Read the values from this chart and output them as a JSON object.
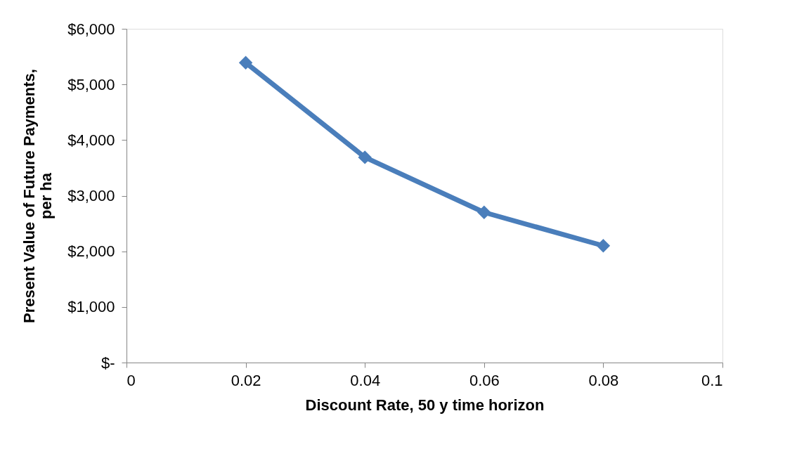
{
  "chart_data": {
    "type": "line",
    "xlabel": "Discount Rate, 50 y time horizon",
    "ylabel": "Present Value of Future Payments, per ha",
    "x": [
      0.02,
      0.04,
      0.06,
      0.08
    ],
    "series": [
      {
        "color": "#4a7ebb",
        "values": [
          5390,
          3690,
          2700,
          2100
        ]
      }
    ],
    "xlim": [
      0,
      0.1
    ],
    "xticks": [
      0,
      0.02,
      0.04,
      0.06,
      0.08,
      0.1
    ],
    "ylim": [
      0,
      6000
    ],
    "yticks": [
      {
        "value": 0,
        "label": "$-"
      },
      {
        "value": 1000,
        "label": "$1,000"
      },
      {
        "value": 2000,
        "label": "$2,000"
      },
      {
        "value": 3000,
        "label": "$3,000"
      },
      {
        "value": 4000,
        "label": "$4,000"
      },
      {
        "value": 5000,
        "label": "$5,000"
      },
      {
        "value": 6000,
        "label": "$6,000"
      }
    ],
    "marker": "diamond",
    "grid": false
  }
}
